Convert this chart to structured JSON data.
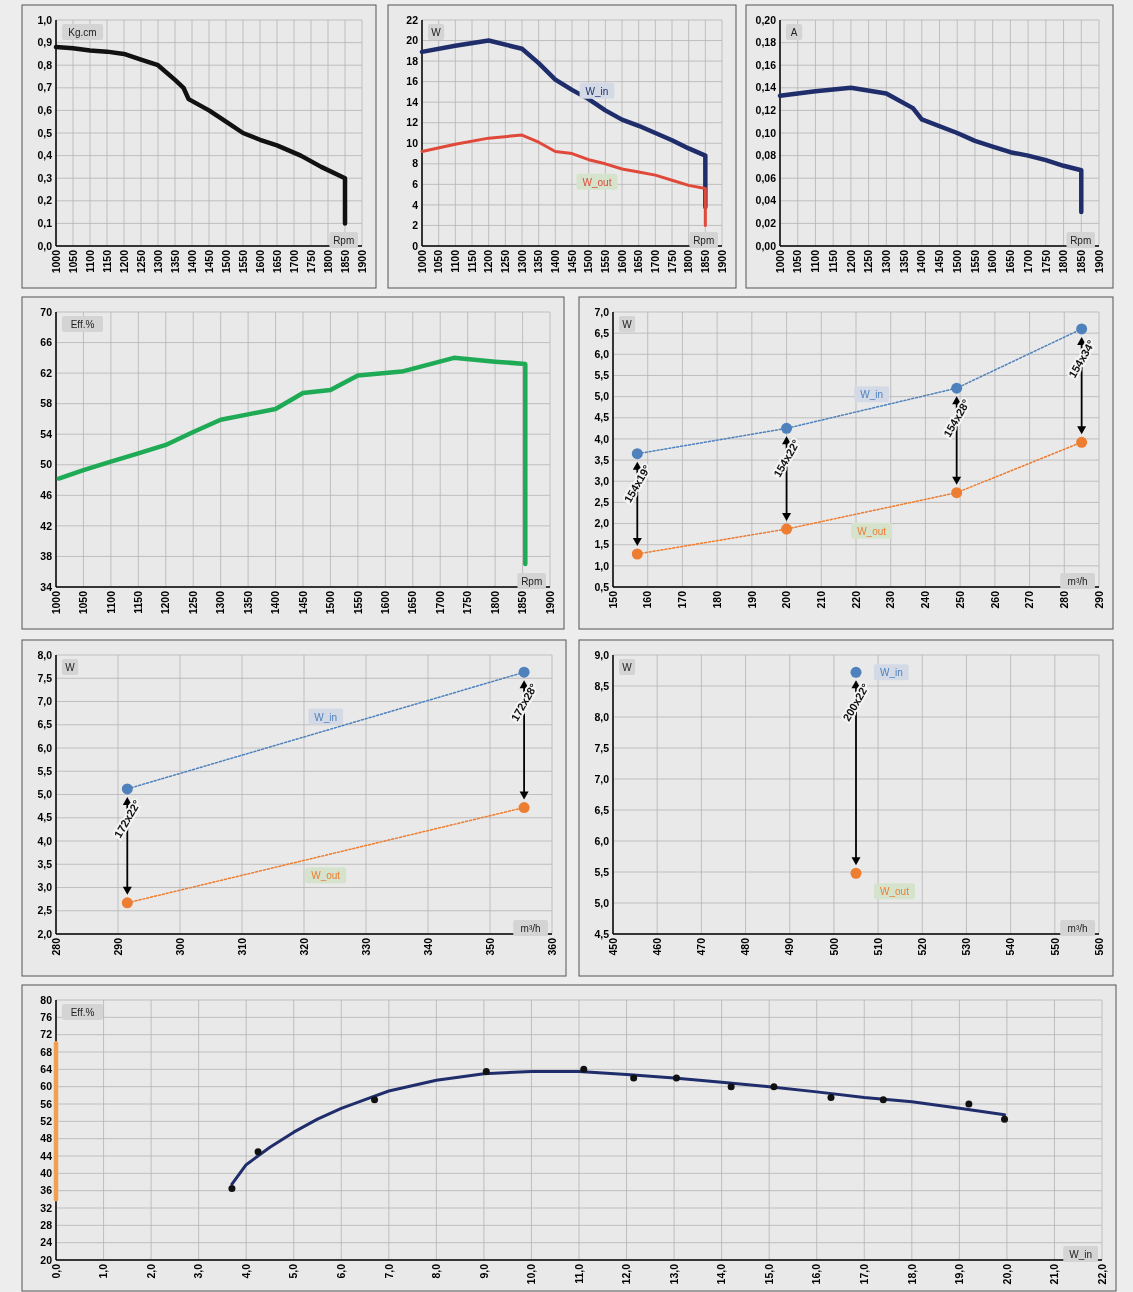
{
  "chart_data": [
    {
      "type": "line",
      "ylabel": "Kg.cm",
      "xlabel": "Rpm",
      "grid": true,
      "line_style": "solid",
      "color": "#111111",
      "x": [
        1000,
        1050,
        1100,
        1150,
        1200,
        1250,
        1300,
        1350,
        1375,
        1390,
        1450,
        1500,
        1550,
        1600,
        1650,
        1720,
        1780,
        1850,
        1850
      ],
      "values": [
        0.88,
        0.875,
        0.865,
        0.86,
        0.85,
        0.825,
        0.8,
        0.735,
        0.7,
        0.65,
        0.6,
        0.55,
        0.5,
        0.47,
        0.445,
        0.4,
        0.35,
        0.3,
        0.1
      ],
      "xlim": [
        1000,
        1900
      ],
      "xticks": [
        1000,
        1050,
        1100,
        1150,
        1200,
        1250,
        1300,
        1350,
        1400,
        1450,
        1500,
        1550,
        1600,
        1650,
        1700,
        1750,
        1800,
        1850,
        1900
      ],
      "ylim": [
        0,
        1
      ],
      "yticks": [
        {
          "value": 0,
          "label": "0,0"
        },
        {
          "value": 0.1,
          "label": "0,1"
        },
        {
          "value": 0.2,
          "label": "0,2"
        },
        {
          "value": 0.3,
          "label": "0,3"
        },
        {
          "value": 0.4,
          "label": "0,4"
        },
        {
          "value": 0.5,
          "label": "0,5"
        },
        {
          "value": 0.6,
          "label": "0,6"
        },
        {
          "value": 0.7,
          "label": "0,7"
        },
        {
          "value": 0.8,
          "label": "0,8"
        },
        {
          "value": 0.9,
          "label": "0,9"
        },
        {
          "value": 1,
          "label": "1,0"
        }
      ]
    },
    {
      "type": "line",
      "ylabel": "W",
      "xlabel": "Rpm",
      "grid": true,
      "line_style": "solid",
      "x": [
        1000,
        1100,
        1200,
        1300,
        1350,
        1400,
        1450,
        1500,
        1550,
        1600,
        1650,
        1700,
        1750,
        1800,
        1850,
        1850
      ],
      "series": [
        {
          "name": "W_in",
          "color": "#1f2d6b",
          "values": [
            18.9,
            19.5,
            20.0,
            19.2,
            17.8,
            16.2,
            15.2,
            14.3,
            13.2,
            12.3,
            11.7,
            11.0,
            10.3,
            9.5,
            8.8,
            3.8
          ]
        },
        {
          "name": "W_out",
          "color": "#e0483a",
          "values": [
            9.2,
            9.9,
            10.5,
            10.8,
            10.1,
            9.2,
            9.0,
            8.4,
            8.0,
            7.5,
            7.2,
            6.9,
            6.4,
            5.9,
            5.6,
            2.0
          ]
        }
      ],
      "xlim": [
        1000,
        1900
      ],
      "xticks": [
        1000,
        1050,
        1100,
        1150,
        1200,
        1250,
        1300,
        1350,
        1400,
        1450,
        1500,
        1550,
        1600,
        1650,
        1700,
        1750,
        1800,
        1850,
        1900
      ],
      "ylim": [
        0,
        22
      ],
      "yticks": [
        0,
        2,
        4,
        6,
        8,
        10,
        12,
        14,
        16,
        18,
        20,
        22
      ]
    },
    {
      "type": "line",
      "ylabel": "A",
      "xlabel": "Rpm",
      "grid": true,
      "line_style": "solid",
      "color": "#1f2d6b",
      "x": [
        1000,
        1100,
        1200,
        1300,
        1375,
        1400,
        1500,
        1550,
        1600,
        1650,
        1700,
        1750,
        1800,
        1850,
        1850
      ],
      "values": [
        0.133,
        0.137,
        0.14,
        0.135,
        0.122,
        0.112,
        0.1,
        0.093,
        0.088,
        0.083,
        0.08,
        0.076,
        0.071,
        0.067,
        0.03
      ],
      "xlim": [
        1000,
        1900
      ],
      "xticks": [
        1000,
        1050,
        1100,
        1150,
        1200,
        1250,
        1300,
        1350,
        1400,
        1450,
        1500,
        1550,
        1600,
        1650,
        1700,
        1750,
        1800,
        1850,
        1900
      ],
      "ylim": [
        0,
        0.2
      ],
      "yticks": [
        {
          "value": 0,
          "label": "0,00"
        },
        {
          "value": 0.02,
          "label": "0,02"
        },
        {
          "value": 0.04,
          "label": "0,04"
        },
        {
          "value": 0.06,
          "label": "0,06"
        },
        {
          "value": 0.08,
          "label": "0,08"
        },
        {
          "value": 0.1,
          "label": "0,10"
        },
        {
          "value": 0.12,
          "label": "0,12"
        },
        {
          "value": 0.14,
          "label": "0,14"
        },
        {
          "value": 0.16,
          "label": "0,16"
        },
        {
          "value": 0.18,
          "label": "0,18"
        },
        {
          "value": 0.2,
          "label": "0,20"
        }
      ]
    },
    {
      "type": "line",
      "ylabel": "Eff.%",
      "xlabel": "Rpm",
      "grid": true,
      "line_style": "solid",
      "color": "#1faa55",
      "x": [
        1005,
        1050,
        1100,
        1150,
        1200,
        1250,
        1300,
        1350,
        1400,
        1450,
        1500,
        1550,
        1600,
        1630,
        1725,
        1800,
        1855,
        1855
      ],
      "values": [
        48.2,
        49.3,
        50.4,
        51.5,
        52.6,
        54.3,
        55.9,
        56.6,
        57.3,
        59.4,
        59.8,
        61.7,
        62.0,
        62.2,
        64.0,
        63.5,
        63.2,
        37
      ],
      "xlim": [
        1000,
        1900
      ],
      "xticks": [
        1000,
        1050,
        1100,
        1150,
        1200,
        1250,
        1300,
        1350,
        1400,
        1450,
        1500,
        1550,
        1600,
        1650,
        1700,
        1750,
        1800,
        1850,
        1900
      ],
      "ylim": [
        34,
        70
      ],
      "yticks": [
        34,
        38,
        42,
        46,
        50,
        54,
        58,
        62,
        66,
        70
      ]
    },
    {
      "type": "line",
      "ylabel": "W",
      "xlabel": "m³/h",
      "grid": true,
      "line_style": "dotted",
      "marker": "circle",
      "x": [
        157,
        200,
        249,
        285
      ],
      "series": [
        {
          "name": "W_in",
          "color": "#4f81bd",
          "values": [
            3.65,
            4.25,
            5.2,
            6.6
          ]
        },
        {
          "name": "W_out",
          "color": "#ed7d31",
          "values": [
            1.28,
            1.87,
            2.73,
            3.92
          ]
        }
      ],
      "annotations": [
        {
          "text": "154x19°",
          "x": 157,
          "y": 3.65
        },
        {
          "text": "154x22°",
          "x": 200,
          "y": 4.25
        },
        {
          "text": "154x28°",
          "x": 249,
          "y": 5.2
        },
        {
          "text": "154x34°",
          "x": 285,
          "y": 6.6
        }
      ],
      "xlim": [
        150,
        290
      ],
      "xticks": [
        150,
        160,
        170,
        180,
        190,
        200,
        210,
        220,
        230,
        240,
        250,
        260,
        270,
        280,
        290
      ],
      "ylim": [
        0.5,
        7
      ],
      "yticks": [
        {
          "value": 0.5,
          "label": "0,5"
        },
        {
          "value": 1,
          "label": "1,0"
        },
        {
          "value": 1.5,
          "label": "1,5"
        },
        {
          "value": 2,
          "label": "2,0"
        },
        {
          "value": 2.5,
          "label": "2,5"
        },
        {
          "value": 3,
          "label": "3,0"
        },
        {
          "value": 3.5,
          "label": "3,5"
        },
        {
          "value": 4,
          "label": "4,0"
        },
        {
          "value": 4.5,
          "label": "4,5"
        },
        {
          "value": 5,
          "label": "5,0"
        },
        {
          "value": 5.5,
          "label": "5,5"
        },
        {
          "value": 6,
          "label": "6,0"
        },
        {
          "value": 6.5,
          "label": "6,5"
        },
        {
          "value": 7,
          "label": "7,0"
        }
      ]
    },
    {
      "type": "line",
      "ylabel": "W",
      "xlabel": "m³/h",
      "grid": true,
      "line_style": "dotted",
      "marker": "circle",
      "x": [
        291.5,
        355.5
      ],
      "series": [
        {
          "name": "W_in",
          "color": "#4f81bd",
          "values": [
            5.12,
            7.63
          ]
        },
        {
          "name": "W_out",
          "color": "#ed7d31",
          "values": [
            2.67,
            4.72
          ]
        }
      ],
      "annotations": [
        {
          "text": "172x22°",
          "x": 291.5,
          "y": 5.12
        },
        {
          "text": "172x28°",
          "x": 355.5,
          "y": 7.63
        }
      ],
      "xlim": [
        280,
        360
      ],
      "xticks": [
        280,
        290,
        300,
        310,
        320,
        330,
        340,
        350,
        360
      ],
      "ylim": [
        2,
        8
      ],
      "yticks": [
        {
          "value": 2,
          "label": "2,0"
        },
        {
          "value": 2.5,
          "label": "2,5"
        },
        {
          "value": 3,
          "label": "3,0"
        },
        {
          "value": 3.5,
          "label": "3,5"
        },
        {
          "value": 4,
          "label": "4,0"
        },
        {
          "value": 4.5,
          "label": "4,5"
        },
        {
          "value": 5,
          "label": "5,0"
        },
        {
          "value": 5.5,
          "label": "5,5"
        },
        {
          "value": 6,
          "label": "6,0"
        },
        {
          "value": 6.5,
          "label": "6,5"
        },
        {
          "value": 7,
          "label": "7,0"
        },
        {
          "value": 7.5,
          "label": "7,5"
        },
        {
          "value": 8,
          "label": "8,0"
        }
      ]
    },
    {
      "type": "line",
      "ylabel": "W",
      "xlabel": "m³/h",
      "grid": true,
      "line_style": "dotted",
      "marker": "circle",
      "x": [
        505
      ],
      "series": [
        {
          "name": "W_in",
          "color": "#4f81bd",
          "values": [
            8.72
          ]
        },
        {
          "name": "W_out",
          "color": "#ed7d31",
          "values": [
            5.48
          ]
        }
      ],
      "annotations": [
        {
          "text": "200x22°",
          "x": 505,
          "y": 8.72
        }
      ],
      "xlim": [
        450,
        560
      ],
      "xticks": [
        450,
        460,
        470,
        480,
        490,
        500,
        510,
        520,
        530,
        540,
        550,
        560
      ],
      "ylim": [
        4.5,
        9
      ],
      "yticks": [
        {
          "value": 4.5,
          "label": "4,5"
        },
        {
          "value": 5,
          "label": "5,0"
        },
        {
          "value": 5.5,
          "label": "5,5"
        },
        {
          "value": 6,
          "label": "6,0"
        },
        {
          "value": 6.5,
          "label": "6,5"
        },
        {
          "value": 7,
          "label": "7,0"
        },
        {
          "value": 7.5,
          "label": "7,5"
        },
        {
          "value": 8,
          "label": "8,0"
        },
        {
          "value": 8.5,
          "label": "8,5"
        },
        {
          "value": 9,
          "label": "9,0"
        }
      ]
    },
    {
      "type": "line",
      "ylabel": "Eff.%",
      "xlabel": "W_in",
      "grid": true,
      "line_style": "solid",
      "series": [
        {
          "color": "#f0a050",
          "x": [
            0,
            0
          ],
          "values": [
            34,
            70
          ]
        },
        {
          "color": "#1f2d6b",
          "x": [
            3.7,
            4,
            4.5,
            5,
            5.5,
            6,
            6.5,
            7,
            8,
            9,
            10,
            11,
            12,
            13,
            14,
            15,
            16,
            17,
            18,
            19,
            19.95
          ],
          "values": [
            37.5,
            42,
            46,
            49.5,
            52.5,
            55,
            57,
            59,
            61.5,
            63,
            63.5,
            63.5,
            62.8,
            62,
            61,
            60,
            58.8,
            57.5,
            56.5,
            55,
            53.5
          ]
        },
        {
          "type": "scatter",
          "marker": "circle",
          "color": "#111111",
          "x": [
            3.7,
            4.25,
            6.7,
            9.05,
            11.1,
            12.15,
            13.05,
            14.2,
            15.1,
            16.3,
            17.4,
            19.2,
            19.95
          ],
          "values": [
            36.5,
            45,
            57,
            63.5,
            64,
            62,
            62,
            60,
            60,
            57.5,
            57,
            56,
            52.5
          ]
        }
      ],
      "xlim": [
        0,
        22
      ],
      "xticks": [
        {
          "value": 0,
          "label": "0,0"
        },
        {
          "value": 1,
          "label": "1,0"
        },
        {
          "value": 2,
          "label": "2,0"
        },
        {
          "value": 3,
          "label": "3,0"
        },
        {
          "value": 4,
          "label": "4,0"
        },
        {
          "value": 5,
          "label": "5,0"
        },
        {
          "value": 6,
          "label": "6,0"
        },
        {
          "value": 7,
          "label": "7,0"
        },
        {
          "value": 8,
          "label": "8,0"
        },
        {
          "value": 9,
          "label": "9,0"
        },
        {
          "value": 10,
          "label": "10,0"
        },
        {
          "value": 11,
          "label": "11,0"
        },
        {
          "value": 12,
          "label": "12,0"
        },
        {
          "value": 13,
          "label": "13,0"
        },
        {
          "value": 14,
          "label": "14,0"
        },
        {
          "value": 15,
          "label": "15,0"
        },
        {
          "value": 16,
          "label": "16,0"
        },
        {
          "value": 17,
          "label": "17,0"
        },
        {
          "value": 18,
          "label": "18,0"
        },
        {
          "value": 19,
          "label": "19,0"
        },
        {
          "value": 20,
          "label": "20,0"
        },
        {
          "value": 21,
          "label": "21,0"
        },
        {
          "value": 22,
          "label": "22,0"
        }
      ],
      "ylim": [
        20,
        80
      ],
      "yticks": [
        20,
        24,
        28,
        32,
        36,
        40,
        44,
        48,
        52,
        56,
        60,
        64,
        68,
        72,
        76,
        80
      ]
    }
  ]
}
